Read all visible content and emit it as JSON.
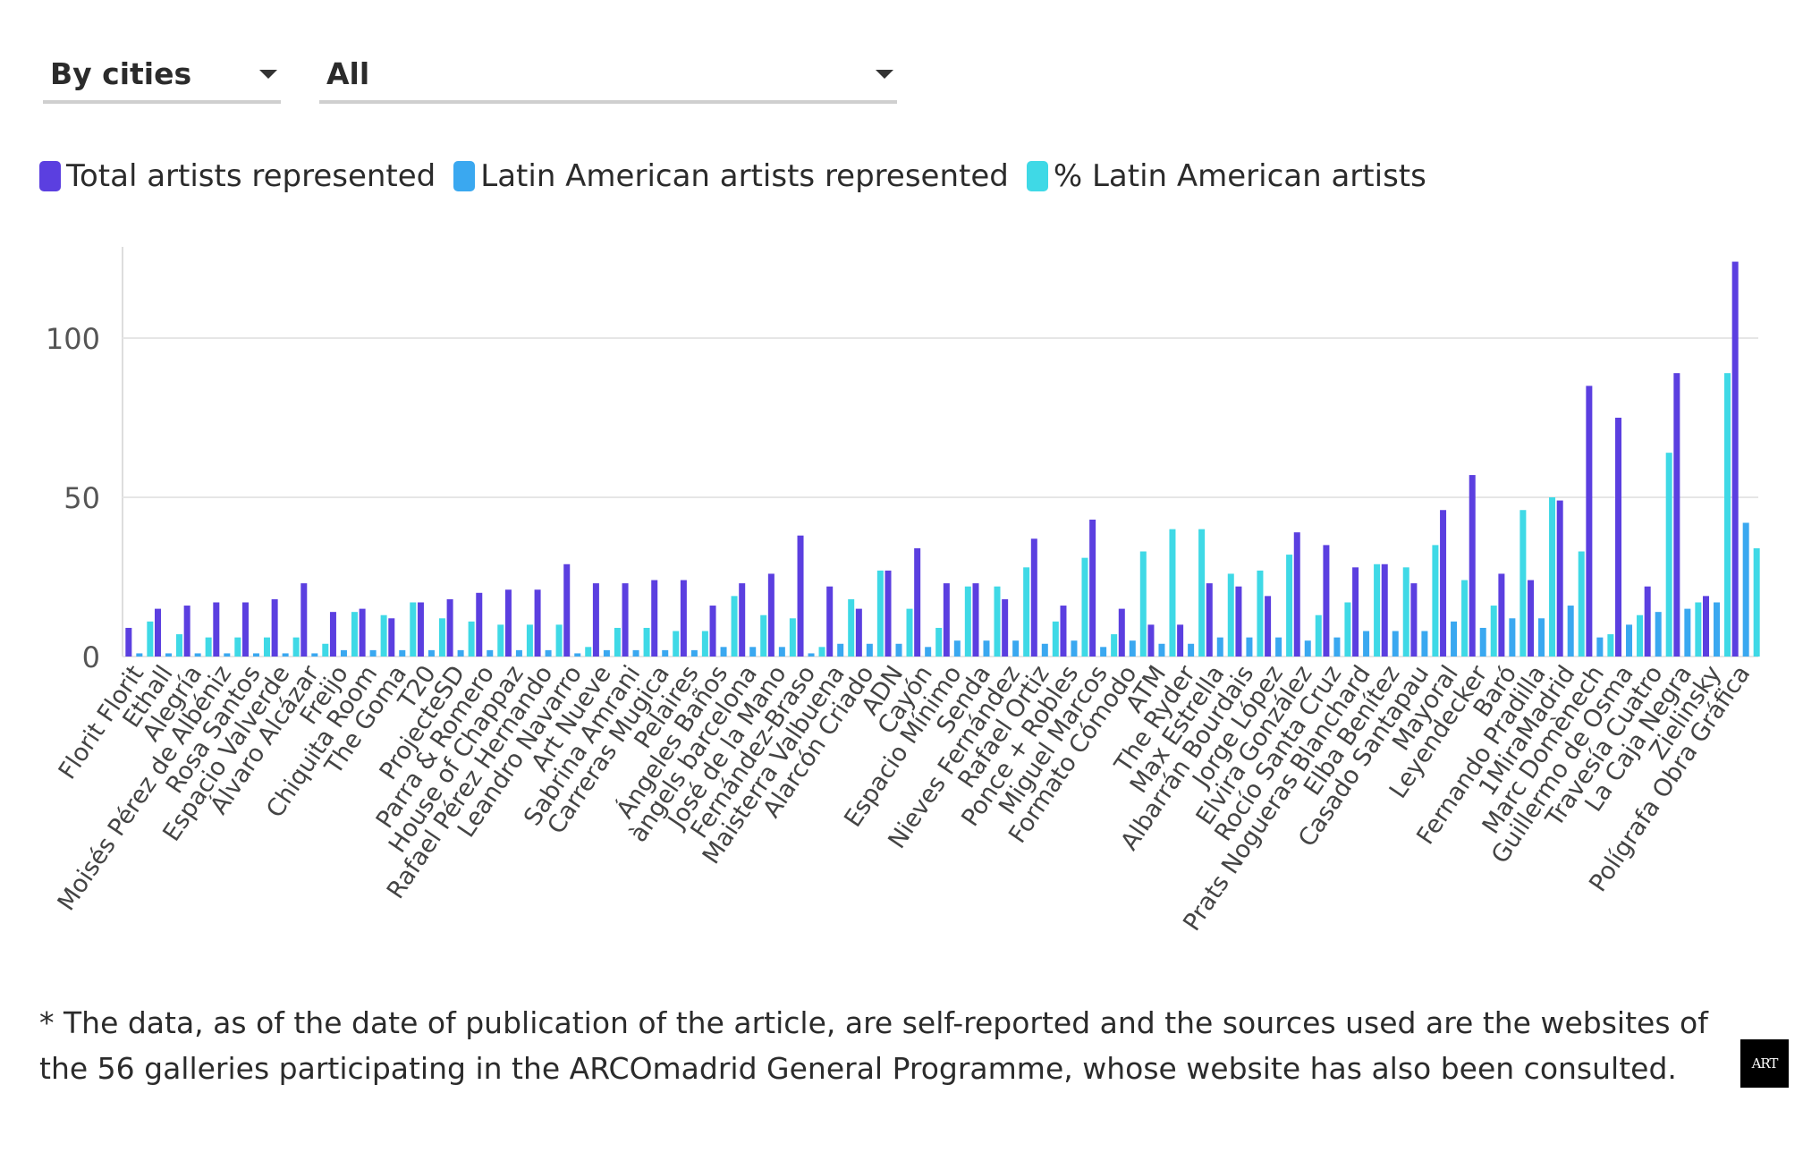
{
  "controls": {
    "group_by": {
      "value": "By cities"
    },
    "filter": {
      "value": "All"
    }
  },
  "legend": [
    {
      "label": "Total artists represented",
      "color": "#5b3fe0"
    },
    {
      "label": "Latin American artists represented",
      "color": "#3aa8f0"
    },
    {
      "label": "% Latin American artists",
      "color": "#3fd9e6"
    }
  ],
  "chart_data": {
    "type": "bar",
    "ylim": [
      0,
      125
    ],
    "yticks": [
      0,
      50,
      100
    ],
    "grid": true,
    "legend_position": "top-left",
    "categories": [
      "Florit Florit",
      "Ethall",
      "Alegría",
      "Moisés Pérez de Albéniz",
      "Rosa Santos",
      "Espacio Valverde",
      "Álvaro Alcázar",
      "Freijo",
      "Chiquita Room",
      "The Goma",
      "T20",
      "ProjecteSD",
      "Parra & Romero",
      "House of Chappaz",
      "Rafael Pérez Hernando",
      "Leandro Navarro",
      "Art Nueve",
      "Sabrina Amrani",
      "Carreras Mugica",
      "Pelaires",
      "Ángeles Baños",
      "àngels barcelona",
      "José de la Mano",
      "Fernández-Braso",
      "Maisterra Valbuena",
      "Alarcón Criado",
      "ADN",
      "Cayón",
      "Espacio Mínimo",
      "Senda",
      "Nieves Fernández",
      "Rafael Ortiz",
      "Ponce + Robles",
      "Miguel Marcos",
      "Formato Cómodo",
      "ATM",
      "The Ryder",
      "Max Estrella",
      "Albarrán Bourdais",
      "Jorge López",
      "Elvira González",
      "Rocío Santa Cruz",
      "Prats Nogueras Blanchard",
      "Elba Benítez",
      "Casado Santapau",
      "Mayoral",
      "Leyendecker",
      "Baró",
      "Fernando Pradilla",
      "1MiraMadrid",
      "Marc Domènech",
      "Guillermo de Osma",
      "Travesía Cuatro",
      "La Caja Negra",
      "Zielinsky",
      "Polígrafa Obra Gráfica"
    ],
    "series": [
      {
        "name": "Total artists represented",
        "color": "#5b3fe0",
        "values": [
          9,
          15,
          16,
          17,
          17,
          18,
          23,
          14,
          15,
          12,
          17,
          18,
          20,
          21,
          21,
          29,
          23,
          23,
          24,
          24,
          16,
          23,
          26,
          38,
          22,
          15,
          27,
          34,
          23,
          23,
          18,
          37,
          16,
          43,
          15,
          10,
          10,
          23,
          22,
          19,
          39,
          35,
          28,
          29,
          23,
          46,
          57,
          26,
          24,
          49,
          85,
          75,
          22,
          89,
          19,
          124
        ]
      },
      {
        "name": "Latin American artists represented",
        "color": "#3aa8f0",
        "values": [
          1,
          1,
          1,
          1,
          1,
          1,
          1,
          2,
          2,
          2,
          2,
          2,
          2,
          2,
          2,
          1,
          2,
          2,
          2,
          2,
          3,
          3,
          3,
          1,
          4,
          4,
          4,
          3,
          5,
          5,
          5,
          4,
          5,
          3,
          5,
          4,
          4,
          6,
          6,
          6,
          5,
          6,
          8,
          8,
          8,
          11,
          9,
          12,
          12,
          16,
          6,
          10,
          14,
          15,
          17,
          42
        ]
      },
      {
        "name": "% Latin American artists",
        "color": "#3fd9e6",
        "values": [
          11,
          7,
          6,
          6,
          6,
          6,
          4,
          14,
          13,
          17,
          12,
          11,
          10,
          10,
          10,
          3,
          9,
          9,
          8,
          8,
          19,
          13,
          12,
          3,
          18,
          27,
          15,
          9,
          22,
          22,
          28,
          11,
          31,
          7,
          33,
          40,
          40,
          26,
          27,
          32,
          13,
          17,
          29,
          28,
          35,
          24,
          16,
          46,
          50,
          33,
          7,
          13,
          64,
          17,
          89,
          34
        ]
      }
    ]
  },
  "footnote": "* The data, as of the date of publication of the article, are self-reported and the sources used are the websites of the 56 galleries participating in the ARCOmadrid General Programme, whose website has also been consulted.",
  "logo_text": "ART"
}
